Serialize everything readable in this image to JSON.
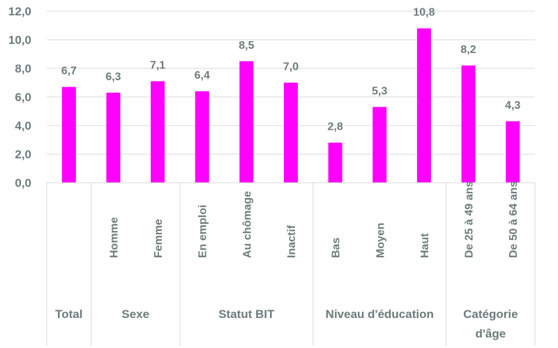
{
  "chart_data": {
    "type": "bar",
    "title": "",
    "xlabel": "",
    "ylabel": "",
    "ylim": [
      0,
      12
    ],
    "yticks": [
      "0,0",
      "2,0",
      "4,0",
      "6,0",
      "8,0",
      "10,0",
      "12,0"
    ],
    "grid": true,
    "legend": "none",
    "color": "#ff00ff",
    "categories": [
      "",
      "Homme",
      "Femme",
      "En emploi",
      "Au chômage",
      "Inactif",
      "Bas",
      "Moyen",
      "Haut",
      "De 25 à 49 ans",
      "De 50 à 64 ans"
    ],
    "values": [
      6.7,
      6.3,
      7.1,
      6.4,
      8.5,
      7.0,
      2.8,
      5.3,
      10.8,
      8.2,
      4.3
    ],
    "value_labels": [
      "6,7",
      "6,3",
      "7,1",
      "6,4",
      "8,5",
      "7,0",
      "2,8",
      "5,3",
      "10,8",
      "8,2",
      "4,3"
    ],
    "groups": [
      {
        "label": [
          "Total"
        ],
        "count": 1
      },
      {
        "label": [
          "Sexe"
        ],
        "count": 2
      },
      {
        "label": [
          "Statut BIT"
        ],
        "count": 3
      },
      {
        "label": [
          "Niveau d'éducation"
        ],
        "count": 3
      },
      {
        "label": [
          "Catégorie",
          "d'âge"
        ],
        "count": 2
      }
    ]
  }
}
